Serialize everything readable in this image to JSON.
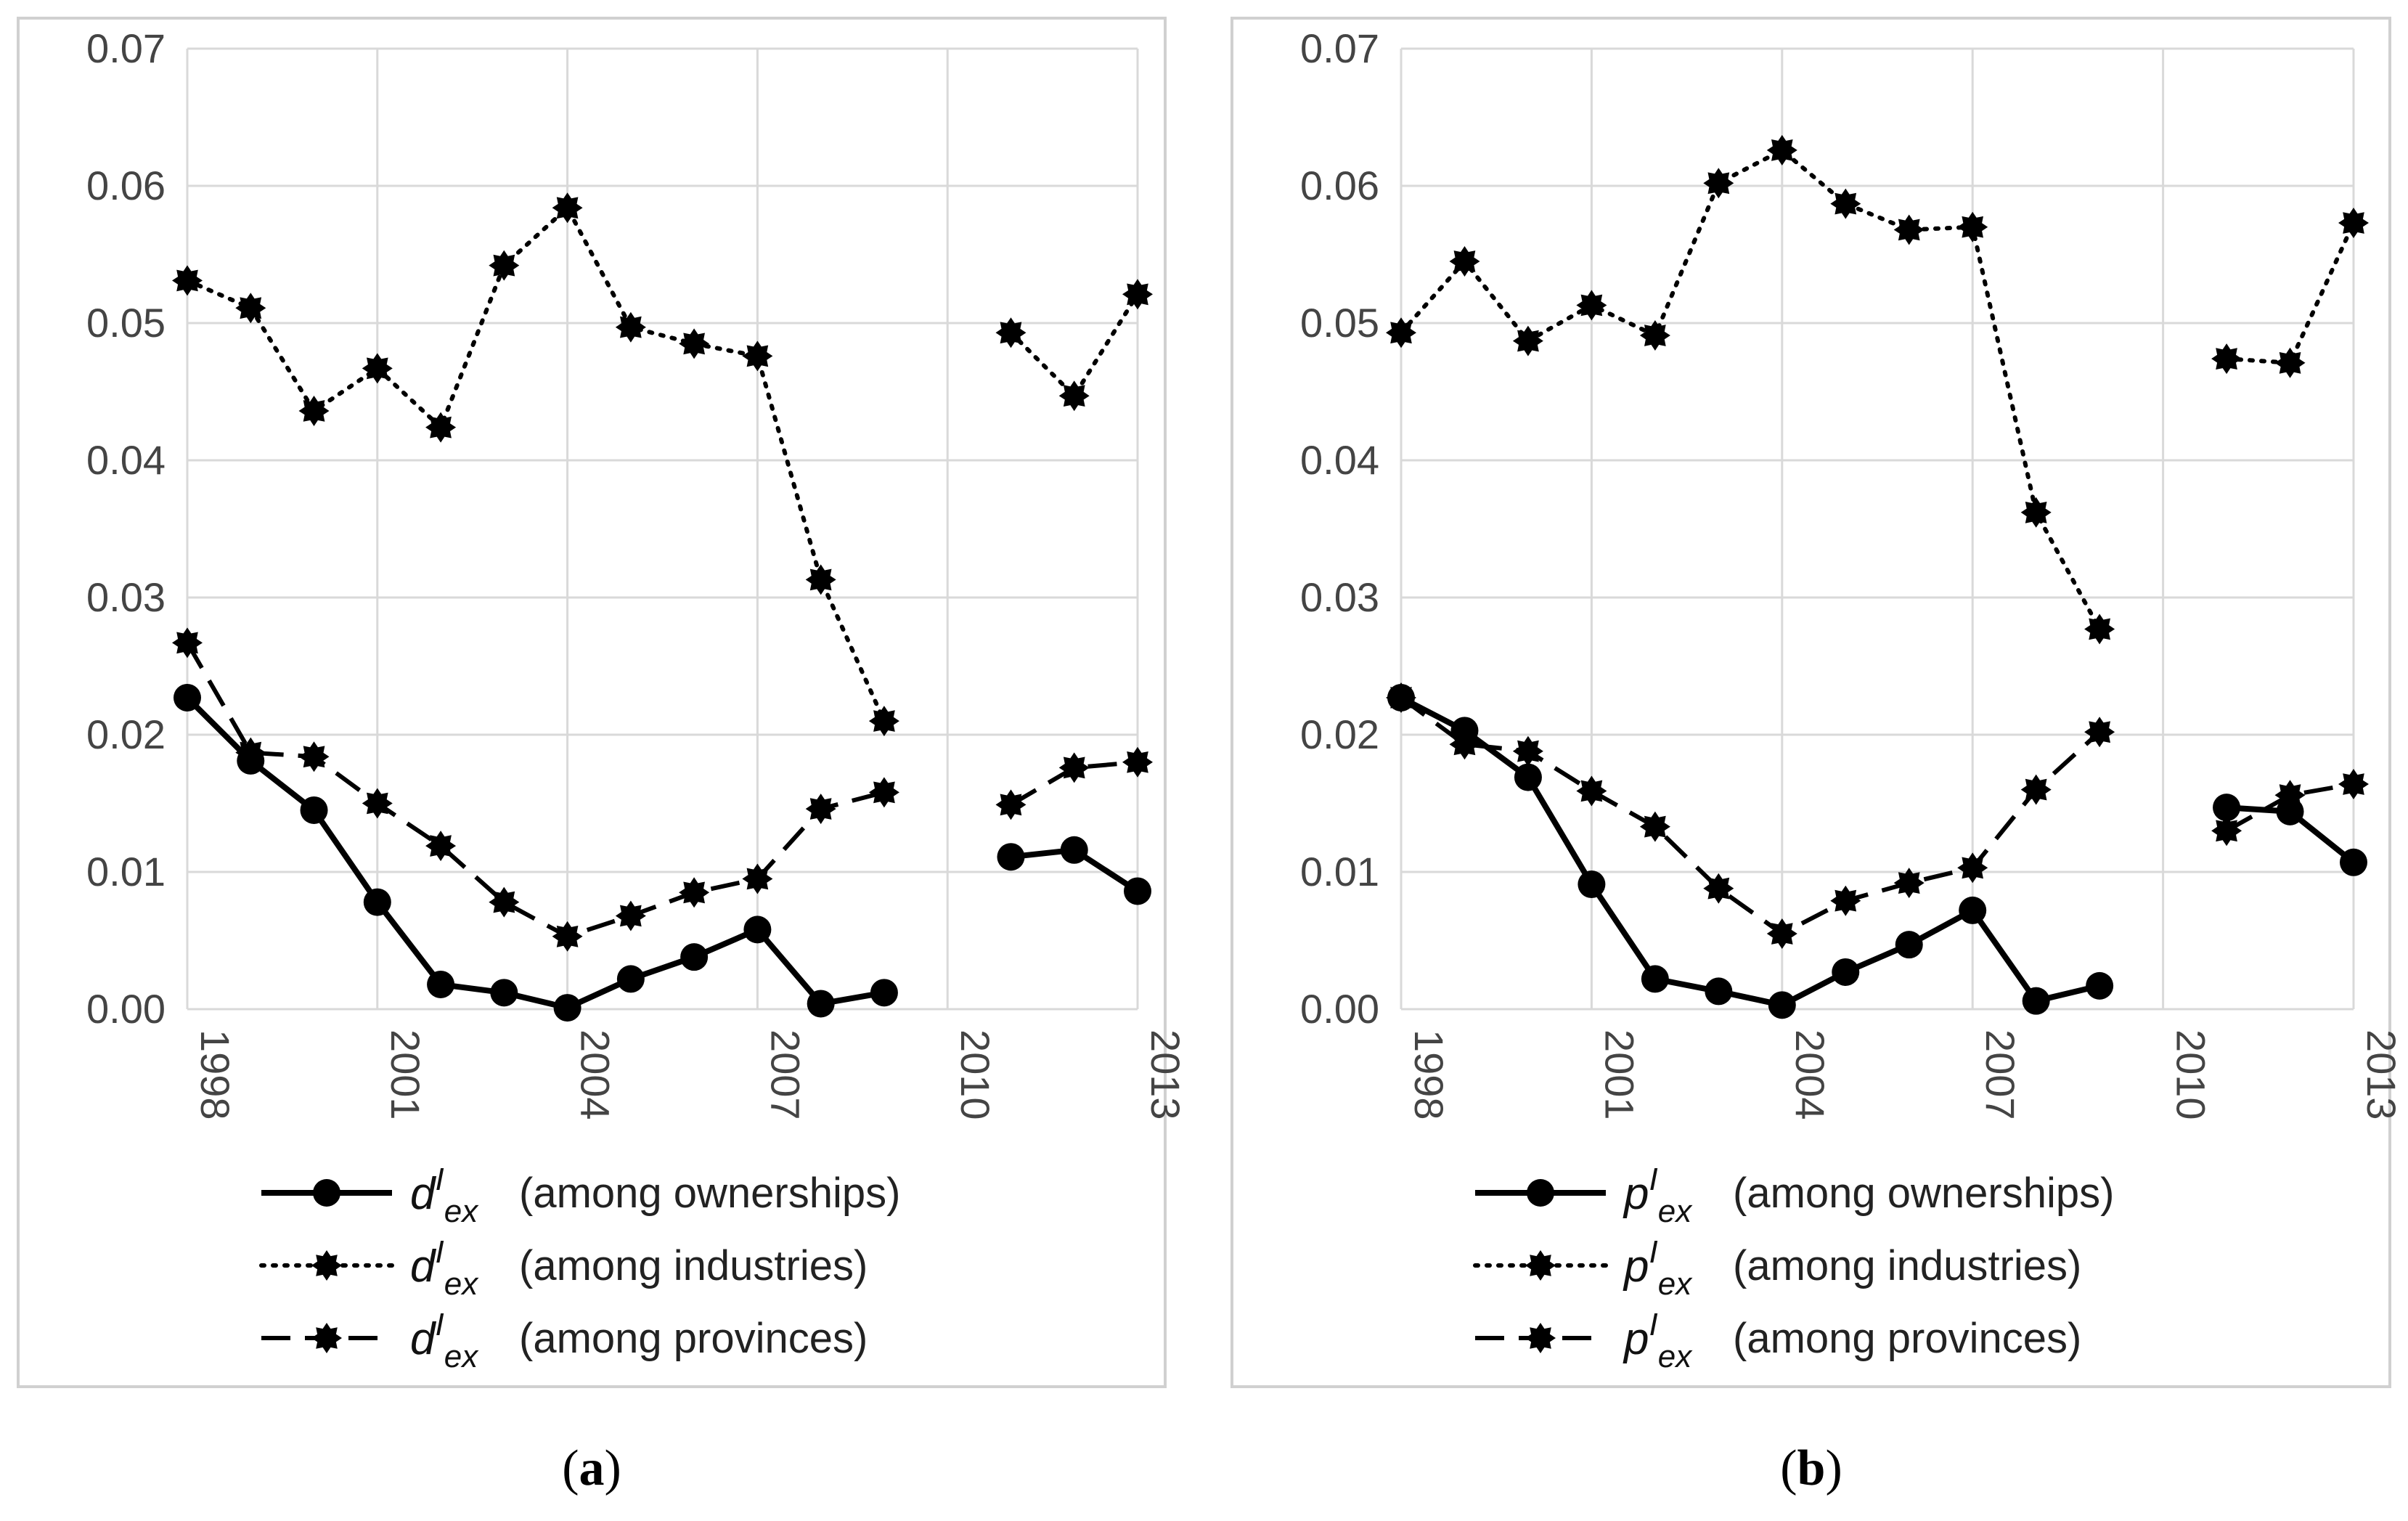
{
  "chart_data": [
    {
      "type": "line",
      "panel": "a",
      "caption": [
        "(",
        "a",
        ")"
      ],
      "symbol": {
        "base": "d",
        "sup": "I",
        "sub": "ex"
      },
      "x": [
        1998,
        1999,
        2000,
        2001,
        2002,
        2003,
        2004,
        2005,
        2006,
        2007,
        2008,
        2009,
        2010,
        2011,
        2012,
        2013
      ],
      "xticks": [
        "1998",
        "2001",
        "2004",
        "2007",
        "2010",
        "2013"
      ],
      "yticks": [
        "0.00",
        "0.01",
        "0.02",
        "0.03",
        "0.04",
        "0.05",
        "0.06",
        "0.07"
      ],
      "ylim": [
        0,
        0.07
      ],
      "grid": true,
      "legend_position": "bottom",
      "series": [
        {
          "name": "(among ownerships)",
          "style": "solid",
          "values": [
            0.0227,
            0.0181,
            0.0145,
            0.0078,
            0.0018,
            0.0012,
            0.0001,
            0.0022,
            0.0038,
            0.0058,
            0.0004,
            0.0012,
            null,
            0.0111,
            0.0116,
            0.0086
          ]
        },
        {
          "name": "(among industries)",
          "style": "dotted",
          "values": [
            0.0531,
            0.0511,
            0.0436,
            0.0467,
            0.0424,
            0.0542,
            0.0584,
            0.0497,
            0.0485,
            0.0476,
            0.0313,
            0.021,
            null,
            0.0493,
            0.0447,
            0.0521
          ]
        },
        {
          "name": "(among provinces)",
          "style": "dashed",
          "values": [
            0.0267,
            0.0187,
            0.0184,
            0.015,
            0.0119,
            0.0078,
            0.0053,
            0.0068,
            0.0085,
            0.0095,
            0.0146,
            0.0158,
            null,
            0.0149,
            0.0176,
            0.018
          ]
        }
      ]
    },
    {
      "type": "line",
      "panel": "b",
      "caption": [
        "(",
        "b",
        ")"
      ],
      "symbol": {
        "base": "p",
        "sup": "I",
        "sub": "ex"
      },
      "x": [
        1998,
        1999,
        2000,
        2001,
        2002,
        2003,
        2004,
        2005,
        2006,
        2007,
        2008,
        2009,
        2010,
        2011,
        2012,
        2013
      ],
      "xticks": [
        "1998",
        "2001",
        "2004",
        "2007",
        "2010",
        "2013"
      ],
      "yticks": [
        "0.00",
        "0.01",
        "0.02",
        "0.03",
        "0.04",
        "0.05",
        "0.06",
        "0.07"
      ],
      "ylim": [
        0,
        0.07
      ],
      "grid": true,
      "legend_position": "bottom",
      "series": [
        {
          "name": "(among ownerships)",
          "style": "solid",
          "values": [
            0.0227,
            0.0203,
            0.0169,
            0.0091,
            0.0022,
            0.0013,
            0.0003,
            0.0027,
            0.0047,
            0.0072,
            0.0006,
            0.0017,
            null,
            0.0147,
            0.0144,
            0.0107
          ]
        },
        {
          "name": "(among industries)",
          "style": "dotted",
          "values": [
            0.0493,
            0.0545,
            0.0487,
            0.0513,
            0.0491,
            0.0602,
            0.0626,
            0.0587,
            0.0568,
            0.057,
            0.0362,
            0.0277,
            null,
            0.0474,
            0.0471,
            0.0573
          ]
        },
        {
          "name": "(among provinces)",
          "style": "dashed",
          "values": [
            0.0227,
            0.0193,
            0.0188,
            0.0159,
            0.0133,
            0.0088,
            0.0055,
            0.0079,
            0.0092,
            0.0103,
            0.016,
            0.0202,
            null,
            0.013,
            0.0156,
            0.0164
          ]
        }
      ]
    }
  ]
}
